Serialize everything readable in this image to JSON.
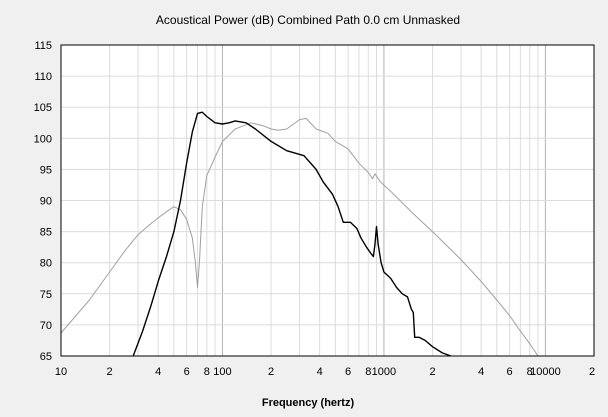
{
  "chart_data": {
    "type": "line",
    "title": "Acoustical Power (dB)   Combined   Path 0.0 cm   Unmasked",
    "xlabel": "Frequency (hertz)",
    "ylabel": "",
    "x_scale": "log",
    "xlim": [
      10,
      20000
    ],
    "ylim": [
      65,
      115
    ],
    "grid": true,
    "x_ticks": [
      {
        "value": 10,
        "label": "10"
      },
      {
        "value": 20,
        "label": "2"
      },
      {
        "value": 40,
        "label": "4"
      },
      {
        "value": 60,
        "label": "6"
      },
      {
        "value": 80,
        "label": "8"
      },
      {
        "value": 100,
        "label": "100"
      },
      {
        "value": 200,
        "label": "2"
      },
      {
        "value": 400,
        "label": "4"
      },
      {
        "value": 600,
        "label": "6"
      },
      {
        "value": 800,
        "label": "8"
      },
      {
        "value": 1000,
        "label": "1000"
      },
      {
        "value": 2000,
        "label": "2"
      },
      {
        "value": 4000,
        "label": "4"
      },
      {
        "value": 6000,
        "label": "6"
      },
      {
        "value": 8000,
        "label": "8"
      },
      {
        "value": 10000,
        "label": "10000"
      },
      {
        "value": 20000,
        "label": "2"
      }
    ],
    "y_ticks": [
      65,
      70,
      75,
      80,
      85,
      90,
      95,
      100,
      105,
      110,
      115
    ],
    "series": [
      {
        "color": "#000000",
        "points": [
          [
            28,
            65
          ],
          [
            32,
            69
          ],
          [
            36,
            73
          ],
          [
            40,
            77
          ],
          [
            45,
            81
          ],
          [
            50,
            85
          ],
          [
            55,
            90
          ],
          [
            60,
            96
          ],
          [
            65,
            101
          ],
          [
            70,
            104
          ],
          [
            75,
            104.2
          ],
          [
            80,
            103.5
          ],
          [
            90,
            102.5
          ],
          [
            100,
            102.3
          ],
          [
            110,
            102.5
          ],
          [
            120,
            102.8
          ],
          [
            140,
            102.5
          ],
          [
            160,
            101.5
          ],
          [
            200,
            99.5
          ],
          [
            250,
            98
          ],
          [
            320,
            97.2
          ],
          [
            380,
            95
          ],
          [
            420,
            93
          ],
          [
            480,
            91
          ],
          [
            520,
            89
          ],
          [
            560,
            86.5
          ],
          [
            620,
            86.5
          ],
          [
            680,
            85.5
          ],
          [
            720,
            84
          ],
          [
            780,
            82.5
          ],
          [
            830,
            81.5
          ],
          [
            860,
            81
          ],
          [
            880,
            83
          ],
          [
            900,
            85.8
          ],
          [
            920,
            83
          ],
          [
            960,
            80
          ],
          [
            1000,
            78.5
          ],
          [
            1100,
            77.5
          ],
          [
            1200,
            76
          ],
          [
            1300,
            75
          ],
          [
            1400,
            74.5
          ],
          [
            1480,
            72.5
          ],
          [
            1520,
            72
          ],
          [
            1550,
            68
          ],
          [
            1650,
            68
          ],
          [
            1800,
            67.5
          ],
          [
            2000,
            66.5
          ],
          [
            2300,
            65.5
          ],
          [
            2600,
            65
          ]
        ]
      },
      {
        "color": "#a0a0a0",
        "points": [
          [
            10,
            68.7
          ],
          [
            15,
            74
          ],
          [
            20,
            78.5
          ],
          [
            25,
            82
          ],
          [
            30,
            84.5
          ],
          [
            35,
            86
          ],
          [
            40,
            87.2
          ],
          [
            45,
            88.2
          ],
          [
            50,
            89
          ],
          [
            55,
            88.5
          ],
          [
            60,
            87
          ],
          [
            65,
            84
          ],
          [
            68,
            80
          ],
          [
            70,
            76
          ],
          [
            72,
            80
          ],
          [
            75,
            89
          ],
          [
            80,
            94
          ],
          [
            90,
            97
          ],
          [
            100,
            99.5
          ],
          [
            120,
            101.5
          ],
          [
            150,
            102.5
          ],
          [
            180,
            102
          ],
          [
            200,
            101.5
          ],
          [
            220,
            101.3
          ],
          [
            250,
            101.5
          ],
          [
            300,
            103
          ],
          [
            330,
            103.2
          ],
          [
            380,
            101.5
          ],
          [
            450,
            100.8
          ],
          [
            500,
            99.5
          ],
          [
            600,
            98.3
          ],
          [
            700,
            96
          ],
          [
            800,
            94.5
          ],
          [
            850,
            93.5
          ],
          [
            880,
            94.3
          ],
          [
            950,
            93
          ],
          [
            1100,
            91.5
          ],
          [
            1500,
            88
          ],
          [
            2000,
            85
          ],
          [
            3000,
            80.5
          ],
          [
            4000,
            77
          ],
          [
            5000,
            74
          ],
          [
            6000,
            71.5
          ],
          [
            7000,
            69
          ],
          [
            8000,
            67
          ],
          [
            9000,
            65
          ]
        ]
      }
    ]
  }
}
